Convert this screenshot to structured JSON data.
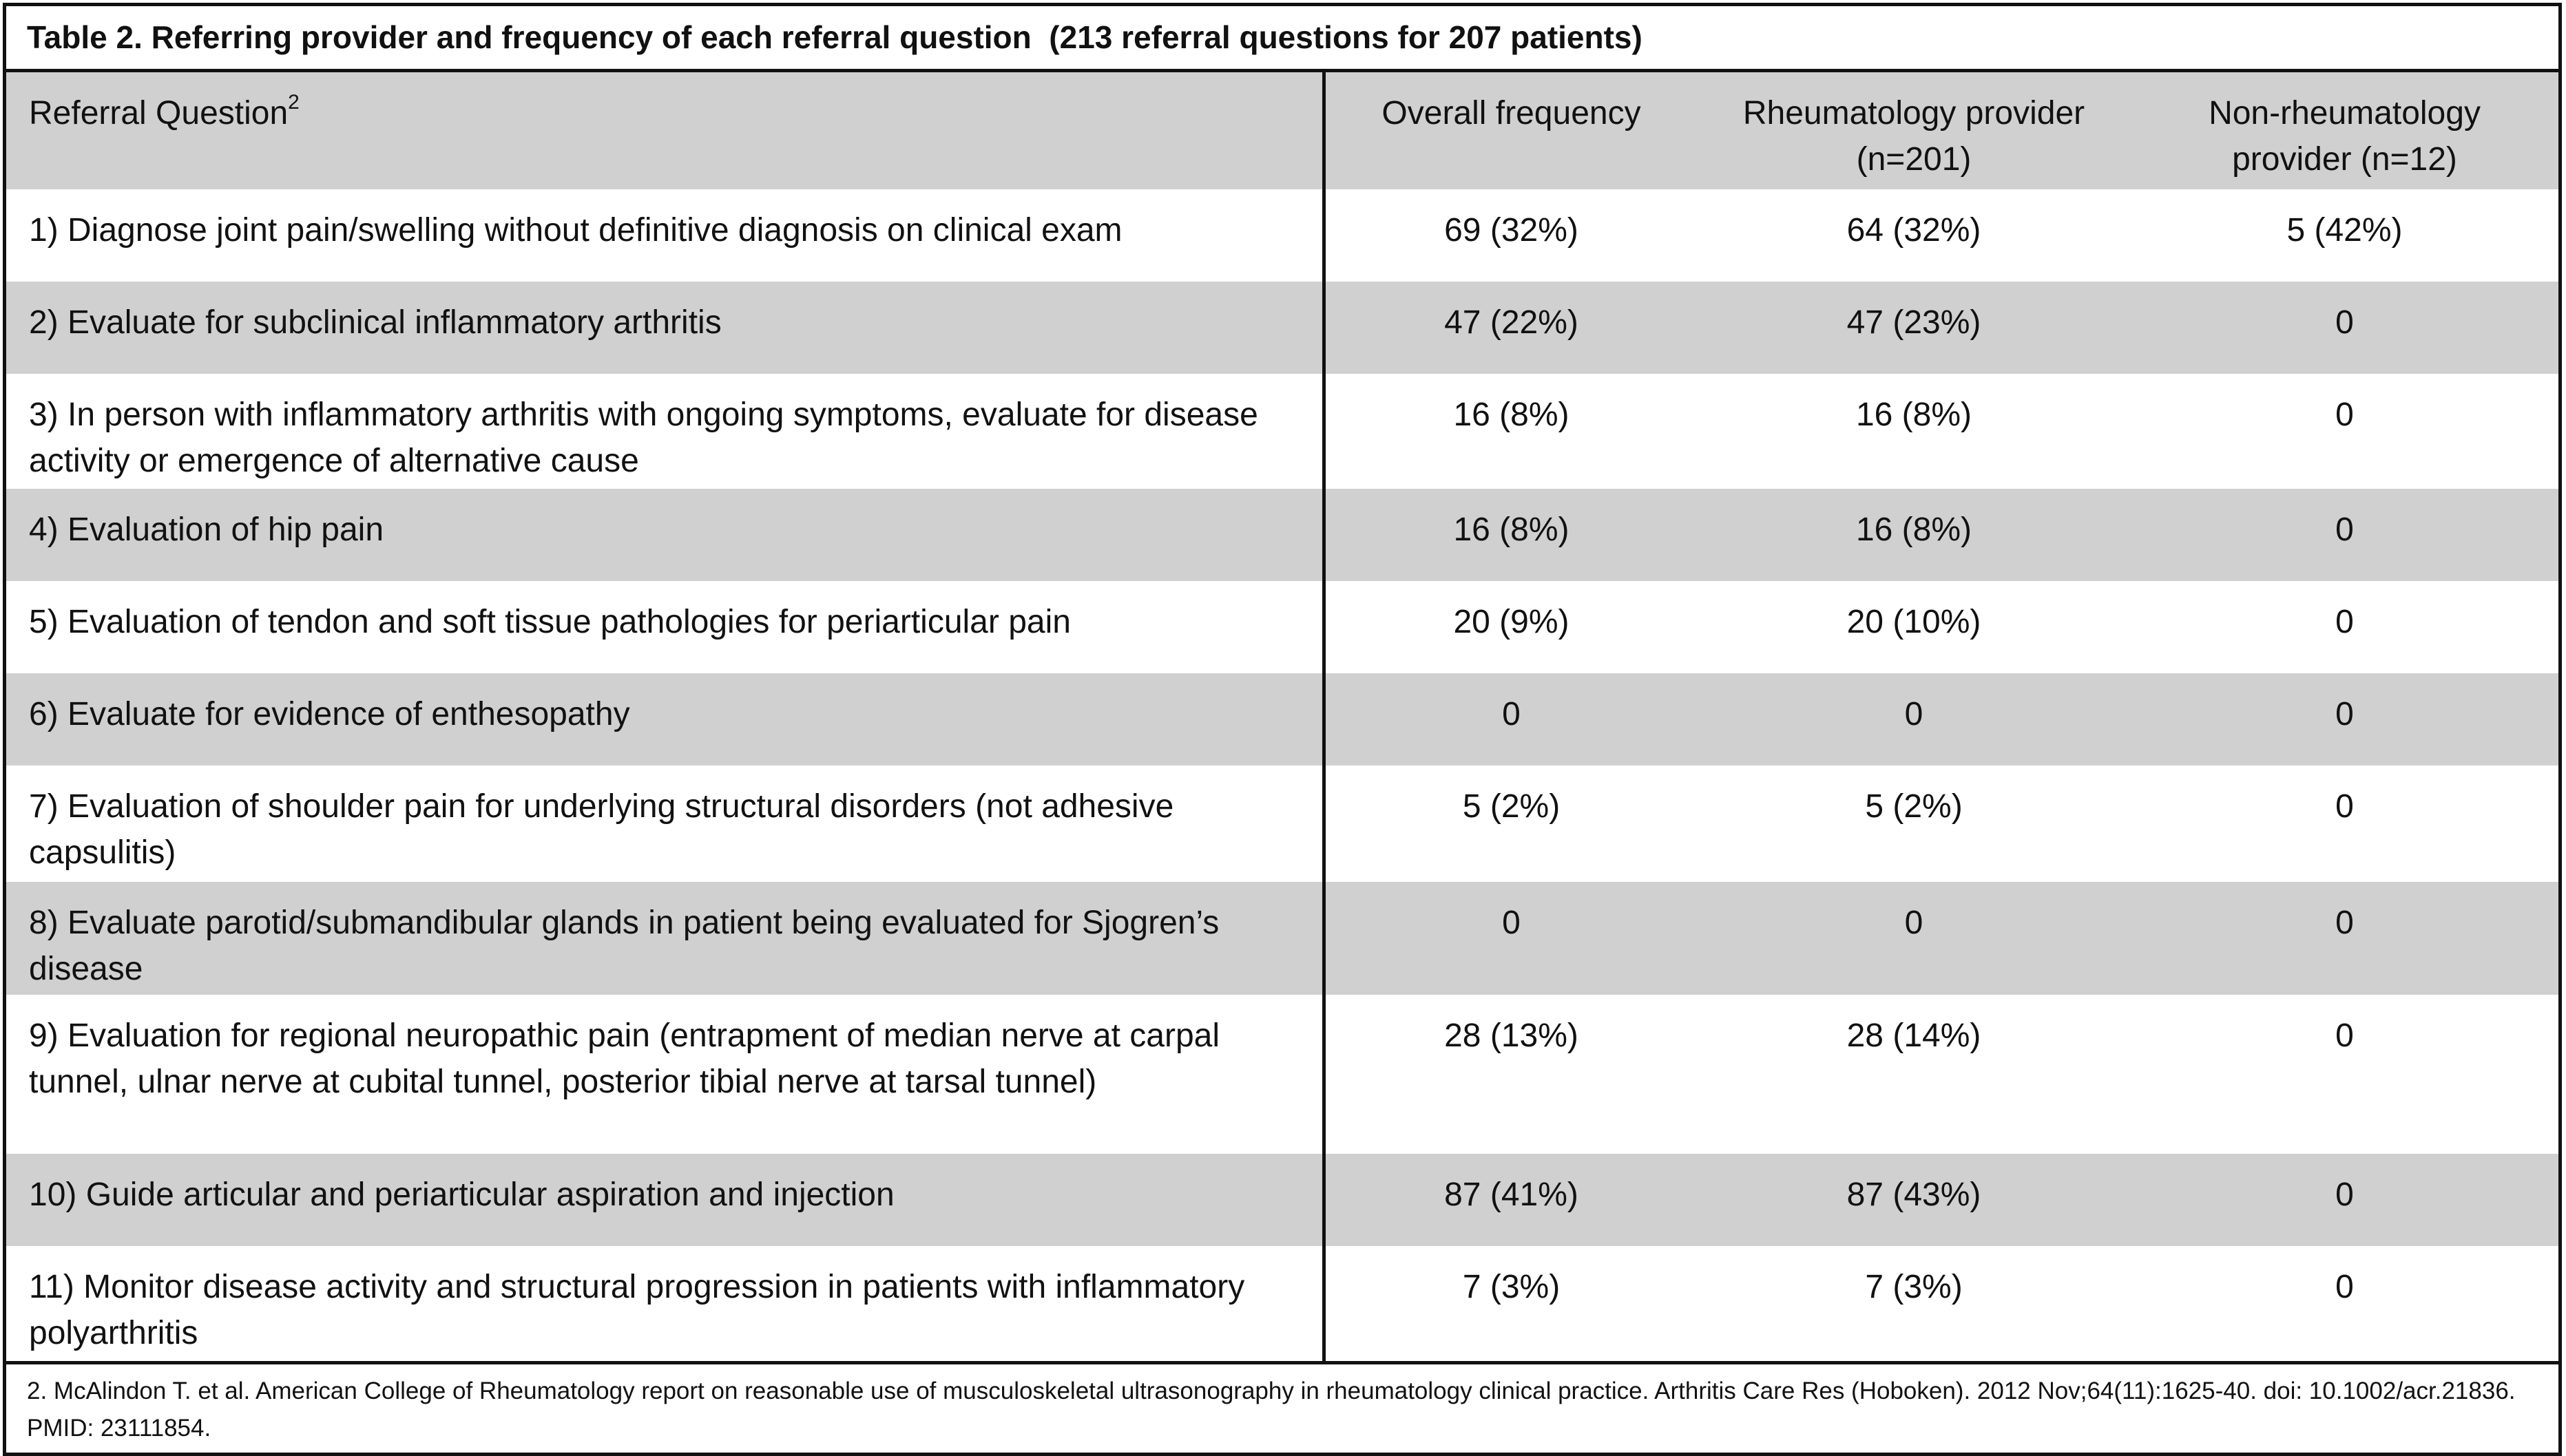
{
  "title": "Table 2. Referring provider and frequency of each referral question  (213 referral questions for 207 patients)",
  "header": {
    "columns": [
      "Referral Question",
      "Overall frequency",
      "Rheumatology provider (n=201)",
      "Non-rheumatology provider (n=12)"
    ],
    "question_note": "2"
  },
  "table": {
    "rows": [
      [
        "1) Diagnose joint pain/swelling without definitive diagnosis on clinical exam",
        "69 (32%)",
        "64 (32%)",
        "5 (42%)"
      ],
      [
        "2) Evaluate for subclinical inflammatory arthritis",
        "47 (22%)",
        "47 (23%)",
        "0"
      ],
      [
        "3) In person with inflammatory arthritis with ongoing symptoms, evaluate for disease activity or emergence of alternative cause",
        "16 (8%)",
        "16 (8%)",
        "0"
      ],
      [
        "4) Evaluation of hip pain",
        "16 (8%)",
        "16 (8%)",
        "0"
      ],
      [
        "5) Evaluation of tendon and soft tissue pathologies for periarticular pain",
        "20 (9%)",
        "20 (10%)",
        "0"
      ],
      [
        "6) Evaluate for evidence of enthesopathy",
        "0",
        "0",
        "0"
      ],
      [
        "7) Evaluation of shoulder pain for underlying structural  disorders (not adhesive capsulitis)",
        "5 (2%)",
        "5 (2%)",
        "0"
      ],
      [
        "8) Evaluate parotid/submandibular glands in patient being evaluated for Sjogren’s disease",
        "0",
        "0",
        "0"
      ],
      [
        "9) Evaluation for regional neuropathic pain (entrapment of median nerve at carpal tunnel, ulnar nerve at cubital tunnel, posterior tibial nerve at tarsal tunnel)",
        "28 (13%)",
        "28 (14%)",
        "0"
      ],
      [
        "10) Guide articular and periarticular aspiration and injection",
        "87 (41%)",
        "87 (43%)",
        "0"
      ],
      [
        "11) Monitor disease activity and structural progression in patients with inflammatory polyarthritis",
        "7 (3%)",
        "7 (3%)",
        "0"
      ]
    ]
  },
  "footnote": "2. McAlindon T. et al. American College of Rheumatology report on reasonable use of musculoskeletal ultrasonography in rheumatology clinical practice. Arthritis Care Res (Hoboken). 2012 Nov;64(11):1625-40. doi: 10.1002/acr.21836. PMID: 23111854."
}
